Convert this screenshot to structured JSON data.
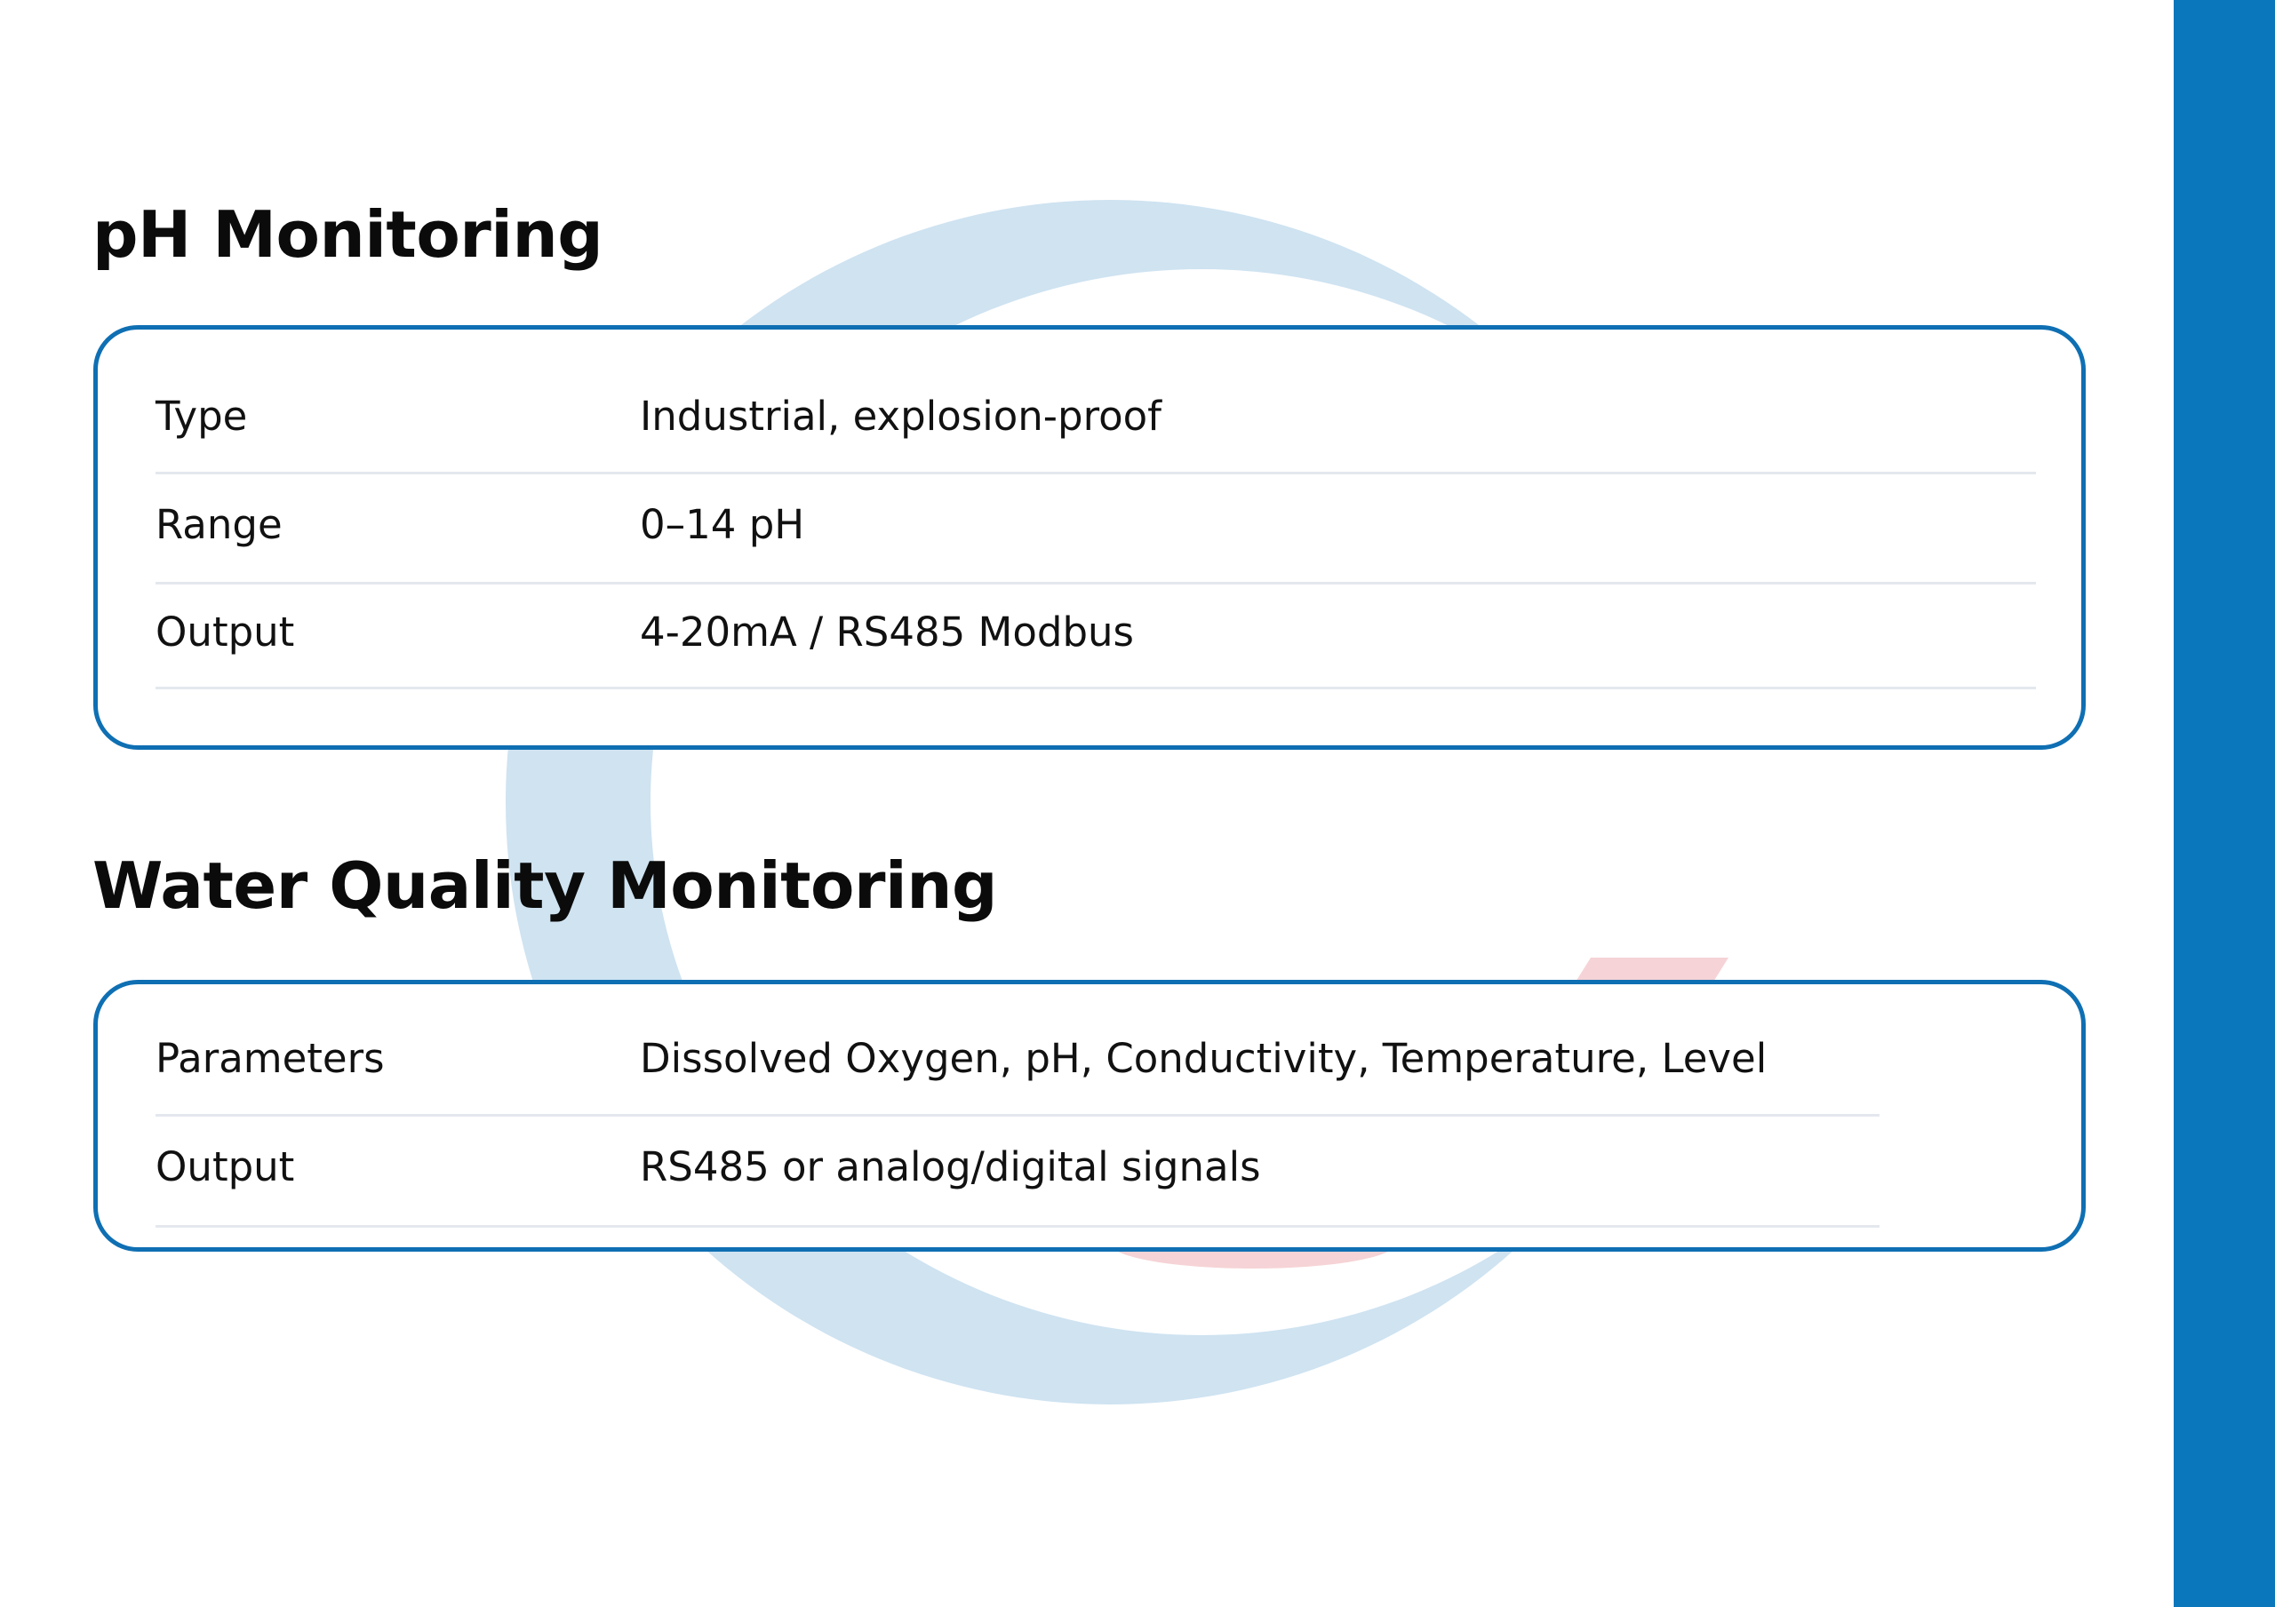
{
  "colors": {
    "accent": "#0a76bc",
    "card_border": "#0f6fb3",
    "watermark_blue": "#cfe3f1",
    "watermark_red": "#f6d3d6"
  },
  "sections": [
    {
      "title": "pH Monitoring",
      "rows": [
        {
          "label": "Type",
          "value": "Industrial, explosion-proof"
        },
        {
          "label": "Range",
          "value": "0–14 pH"
        },
        {
          "label": "Output",
          "value": "4-20mA / RS485 Modbus"
        }
      ]
    },
    {
      "title": "Water Quality Monitoring",
      "rows": [
        {
          "label": "Parameters",
          "value": "Dissolved Oxygen, pH, Conductivity, Temperature, Level"
        },
        {
          "label": "Output",
          "value": "RS485 or analog/digital signals"
        }
      ]
    }
  ]
}
